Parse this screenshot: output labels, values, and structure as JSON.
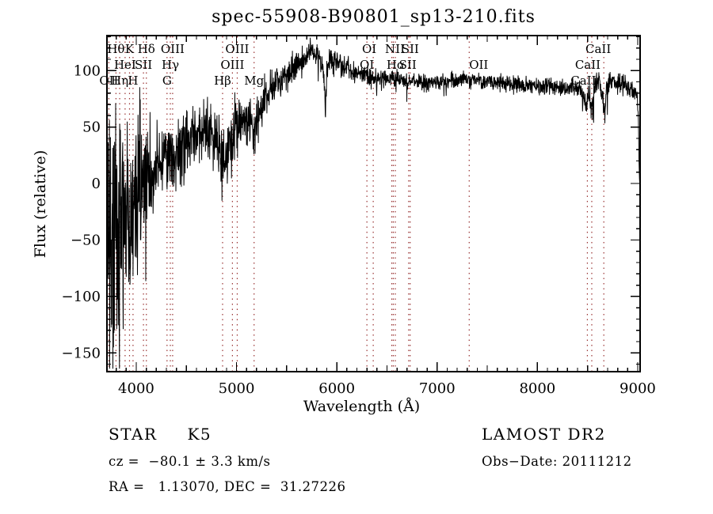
{
  "title": "spec-55908-B90801_sp13-210.fits",
  "chart_data": {
    "type": "line",
    "title": "spec-55908-B90801_sp13-210.fits",
    "xlabel": "Wavelength (Å)",
    "ylabel": "Flux (relative)",
    "xlim": [
      3708,
      9024
    ],
    "ylim": [
      -166.6,
      131
    ],
    "x_major_ticks": [
      4000,
      5000,
      6000,
      7000,
      8000,
      9000
    ],
    "x_minor_step": 100,
    "y_major_ticks": [
      -150,
      -100,
      -50,
      0,
      50,
      100
    ],
    "y_minor_step": 10,
    "grid": false,
    "line_color": "#000000",
    "marker_color": "#993333",
    "series_name": "flux",
    "continuum_points_format": "[wavelength_A, mean_flux, noise_half_amplitude]",
    "continuum": [
      [
        3710,
        -55,
        105
      ],
      [
        3735,
        -40,
        110
      ],
      [
        3760,
        -65,
        105
      ],
      [
        3785,
        -35,
        105
      ],
      [
        3810,
        -55,
        100
      ],
      [
        3835,
        -45,
        98
      ],
      [
        3860,
        -55,
        95
      ],
      [
        3885,
        -40,
        92
      ],
      [
        3910,
        -30,
        90
      ],
      [
        3935,
        -38,
        88
      ],
      [
        3960,
        -25,
        84
      ],
      [
        3985,
        -18,
        78
      ],
      [
        4010,
        -12,
        72
      ],
      [
        4035,
        -5,
        65
      ],
      [
        4060,
        0,
        60
      ],
      [
        4085,
        5,
        55
      ],
      [
        4110,
        8,
        52
      ],
      [
        4135,
        12,
        49
      ],
      [
        4160,
        15,
        47
      ],
      [
        4185,
        17,
        45
      ],
      [
        4210,
        19,
        43
      ],
      [
        4235,
        22,
        41
      ],
      [
        4260,
        24,
        40
      ],
      [
        4285,
        25,
        39
      ],
      [
        4310,
        25,
        39
      ],
      [
        4335,
        27,
        38
      ],
      [
        4360,
        28,
        37
      ],
      [
        4390,
        30,
        36
      ],
      [
        4420,
        32,
        34
      ],
      [
        4450,
        34,
        33
      ],
      [
        4480,
        36,
        31
      ],
      [
        4510,
        38,
        30
      ],
      [
        4540,
        40,
        29
      ],
      [
        4570,
        42,
        28
      ],
      [
        4600,
        43,
        28
      ],
      [
        4630,
        45,
        27
      ],
      [
        4660,
        47,
        26
      ],
      [
        4690,
        48,
        26
      ],
      [
        4720,
        47,
        26
      ],
      [
        4750,
        45,
        26
      ],
      [
        4780,
        41,
        27
      ],
      [
        4810,
        35,
        28
      ],
      [
        4840,
        25,
        29
      ],
      [
        4861,
        17,
        30
      ],
      [
        4885,
        24,
        29
      ],
      [
        4910,
        32,
        28
      ],
      [
        4935,
        40,
        27
      ],
      [
        4960,
        45,
        26
      ],
      [
        4985,
        49,
        25
      ],
      [
        5010,
        52,
        24
      ],
      [
        5040,
        55,
        23
      ],
      [
        5070,
        57,
        22
      ],
      [
        5100,
        59,
        22
      ],
      [
        5130,
        58,
        22
      ],
      [
        5160,
        48,
        23
      ],
      [
        5175,
        44,
        23
      ],
      [
        5195,
        55,
        21
      ],
      [
        5220,
        62,
        20
      ],
      [
        5250,
        67,
        19
      ],
      [
        5280,
        72,
        19
      ],
      [
        5310,
        77,
        18
      ],
      [
        5340,
        81,
        18
      ],
      [
        5370,
        85,
        17
      ],
      [
        5400,
        88,
        17
      ],
      [
        5430,
        91,
        16
      ],
      [
        5460,
        93,
        16
      ],
      [
        5490,
        96,
        15
      ],
      [
        5520,
        98,
        15
      ],
      [
        5550,
        101,
        15
      ],
      [
        5580,
        104,
        14
      ],
      [
        5610,
        106,
        14
      ],
      [
        5640,
        109,
        14
      ],
      [
        5670,
        111,
        13
      ],
      [
        5700,
        113,
        13
      ],
      [
        5730,
        115,
        13
      ],
      [
        5760,
        116,
        12
      ],
      [
        5790,
        115,
        12
      ],
      [
        5820,
        112,
        12
      ],
      [
        5850,
        107,
        13
      ],
      [
        5875,
        88,
        16
      ],
      [
        5888,
        62,
        14
      ],
      [
        5900,
        100,
        13
      ],
      [
        5930,
        105,
        12
      ],
      [
        5960,
        107,
        12
      ],
      [
        5990,
        107,
        11
      ],
      [
        6020,
        106,
        11
      ],
      [
        6050,
        104,
        11
      ],
      [
        6080,
        103,
        10
      ],
      [
        6120,
        101,
        10
      ],
      [
        6160,
        99,
        10
      ],
      [
        6200,
        98,
        9
      ],
      [
        6240,
        97,
        9
      ],
      [
        6280,
        96,
        9
      ],
      [
        6320,
        95,
        9
      ],
      [
        6360,
        95,
        9
      ],
      [
        6400,
        94,
        8
      ],
      [
        6450,
        93,
        8
      ],
      [
        6500,
        93,
        8
      ],
      [
        6550,
        92,
        8
      ],
      [
        6600,
        92,
        8
      ],
      [
        6650,
        91,
        8
      ],
      [
        6700,
        91,
        7
      ],
      [
        6750,
        90,
        7
      ],
      [
        6800,
        90,
        7
      ],
      [
        6860,
        89,
        7
      ],
      [
        6920,
        89,
        7
      ],
      [
        6980,
        90,
        7
      ],
      [
        7040,
        90,
        7
      ],
      [
        7100,
        91,
        7
      ],
      [
        7160,
        91,
        7
      ],
      [
        7220,
        92,
        7
      ],
      [
        7280,
        92,
        7
      ],
      [
        7340,
        91,
        7
      ],
      [
        7400,
        91,
        7
      ],
      [
        7460,
        90,
        7
      ],
      [
        7520,
        90,
        7
      ],
      [
        7580,
        89,
        7
      ],
      [
        7640,
        89,
        7
      ],
      [
        7700,
        88,
        7
      ],
      [
        7760,
        88,
        7
      ],
      [
        7820,
        88,
        7
      ],
      [
        7880,
        87,
        7
      ],
      [
        7940,
        87,
        7
      ],
      [
        8000,
        87,
        7
      ],
      [
        8060,
        86,
        8
      ],
      [
        8120,
        86,
        8
      ],
      [
        8180,
        86,
        8
      ],
      [
        8240,
        85,
        8
      ],
      [
        8300,
        85,
        9
      ],
      [
        8360,
        85,
        9
      ],
      [
        8420,
        83,
        9
      ],
      [
        8470,
        76,
        11
      ],
      [
        8498,
        70,
        12
      ],
      [
        8520,
        78,
        12
      ],
      [
        8545,
        66,
        13
      ],
      [
        8570,
        80,
        12
      ],
      [
        8600,
        95,
        13
      ],
      [
        8625,
        88,
        12
      ],
      [
        8662,
        68,
        12
      ],
      [
        8690,
        84,
        11
      ],
      [
        8720,
        90,
        10
      ],
      [
        8760,
        89,
        10
      ],
      [
        8800,
        88,
        9
      ],
      [
        8840,
        87,
        9
      ],
      [
        8880,
        86,
        9
      ],
      [
        8920,
        84,
        9
      ],
      [
        8960,
        82,
        8
      ],
      [
        8995,
        79,
        8
      ],
      [
        9008,
        55,
        6
      ],
      [
        9016,
        5,
        3
      ],
      [
        9022,
        0,
        2
      ]
    ],
    "line_markers": [
      {
        "wl": 3727,
        "label": "OII",
        "row": 3
      },
      {
        "wl": 3798,
        "label": "Hθ",
        "row": 1
      },
      {
        "wl": 3835,
        "label": "Hη",
        "row": 3
      },
      {
        "wl": 3889,
        "label": "HeI",
        "row": 2
      },
      {
        "wl": 3933,
        "label": "K",
        "row": 1
      },
      {
        "wl": 3968,
        "label": "H",
        "row": 3
      },
      {
        "wl": 4072,
        "label": "SII",
        "row": 2
      },
      {
        "wl": 4101,
        "label": "Hδ",
        "row": 1
      },
      {
        "wl": 4307,
        "label": "G",
        "row": 3
      },
      {
        "wl": 4340,
        "label": "Hγ",
        "row": 2
      },
      {
        "wl": 4363,
        "label": "OIII",
        "row": 1
      },
      {
        "wl": 4861,
        "label": "Hβ",
        "row": 3
      },
      {
        "wl": 4959,
        "label": "OIII",
        "row": 2
      },
      {
        "wl": 5007,
        "label": "OIII",
        "row": 1
      },
      {
        "wl": 5175,
        "label": "Mg",
        "row": 3
      },
      {
        "wl": 6300,
        "label": "OI",
        "row": 2
      },
      {
        "wl": 6363,
        "label": "OI",
        "row": 1,
        "dx": -5
      },
      {
        "wl": 6548,
        "label": "NII",
        "row": 1,
        "dx": 4
      },
      {
        "wl": 6563,
        "label": "Hα",
        "row": 2,
        "dx": 3
      },
      {
        "wl": 6583,
        "label": "",
        "row": 0
      },
      {
        "wl": 6716,
        "label": "SII",
        "row": 1,
        "dx": 2
      },
      {
        "wl": 6731,
        "label": "SII",
        "row": 2,
        "dx": -3
      },
      {
        "wl": 7320,
        "label": "OII",
        "row": 2,
        "dx": 12
      },
      {
        "wl": 8498,
        "label": "CaII",
        "row": 3,
        "dx": -5
      },
      {
        "wl": 8542,
        "label": "CaII",
        "row": 2,
        "dx": -5
      },
      {
        "wl": 8662,
        "label": "CaII",
        "row": 1,
        "dx": -7
      }
    ]
  },
  "annotations": {
    "class_label": "STAR",
    "subclass": "K5",
    "cz_line": "cz =  −80.1 ± 3.3 km/s",
    "radec_line": "RA =   1.13070, DEC =  31.27226",
    "survey": "LAMOST DR2",
    "obs_date_line": "Obs−Date: 20111212"
  }
}
